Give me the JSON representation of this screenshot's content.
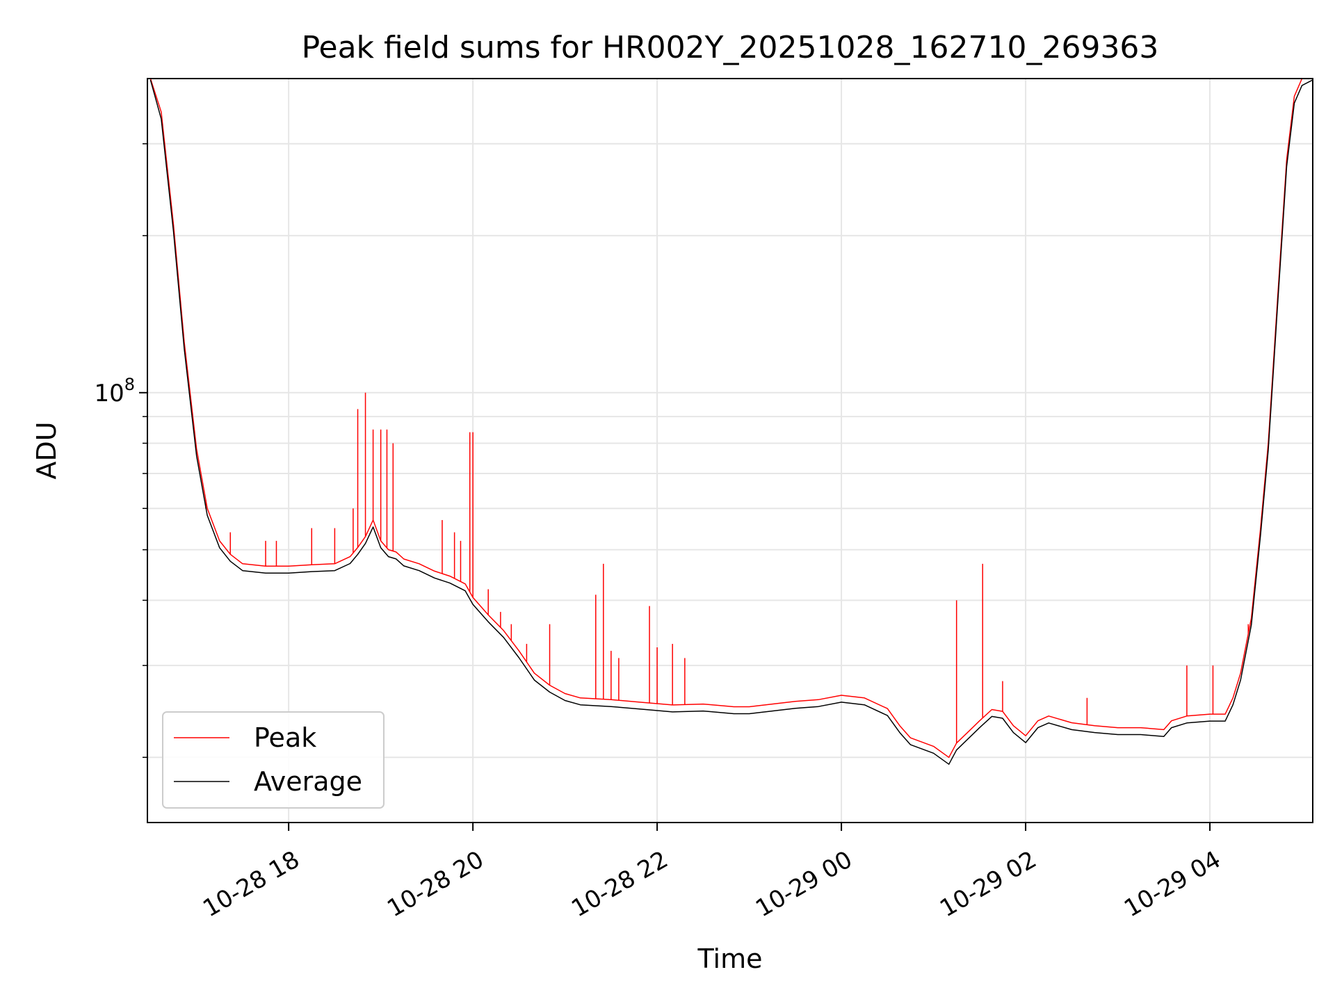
{
  "chart_data": {
    "type": "line",
    "title": "Peak field sums for HR002Y_20251028_162710_269363",
    "xlabel": "Time",
    "ylabel": "ADU",
    "x_axis": {
      "type": "time",
      "min": "2025-10-28T16:28:00",
      "max": "2025-10-29T05:07:00",
      "ticks": [
        {
          "value": "2025-10-28T18:00:00",
          "label": "10-28 18"
        },
        {
          "value": "2025-10-28T20:00:00",
          "label": "10-28 20"
        },
        {
          "value": "2025-10-28T22:00:00",
          "label": "10-28 22"
        },
        {
          "value": "2025-10-29T00:00:00",
          "label": "10-29 00"
        },
        {
          "value": "2025-10-29T02:00:00",
          "label": "10-29 02"
        },
        {
          "value": "2025-10-29T04:00:00",
          "label": "10-29 04"
        }
      ]
    },
    "y_axis": {
      "scale": "log",
      "ylim": [
        15000000,
        400000000
      ],
      "major_ticks": [
        {
          "value": 100000000,
          "base": "10",
          "exp": "8"
        }
      ],
      "minor_ticks": [
        20000000,
        30000000,
        40000000,
        50000000,
        60000000,
        70000000,
        80000000,
        90000000,
        200000000,
        300000000
      ]
    },
    "grid": true,
    "legend": {
      "position": "lower-left"
    },
    "series": [
      {
        "name": "Peak",
        "color": "#ff0000",
        "points": [
          [
            "2025-10-28T16:30:00",
            410000000
          ],
          [
            "2025-10-28T16:37:00",
            345000000
          ],
          [
            "2025-10-28T16:45:00",
            210000000
          ],
          [
            "2025-10-28T16:52:00",
            125000000
          ],
          [
            "2025-10-28T17:00:00",
            78000000
          ],
          [
            "2025-10-28T17:07:00",
            60000000
          ],
          [
            "2025-10-28T17:15:00",
            52000000
          ],
          [
            "2025-10-28T17:22:00",
            49000000
          ],
          [
            "2025-10-28T17:30:00",
            47000000
          ],
          [
            "2025-10-28T17:45:00",
            46500000
          ],
          [
            "2025-10-28T18:00:00",
            46500000
          ],
          [
            "2025-10-28T18:15:00",
            46800000
          ],
          [
            "2025-10-28T18:30:00",
            47000000
          ],
          [
            "2025-10-28T18:40:00",
            48500000
          ],
          [
            "2025-10-28T18:45:00",
            50500000
          ],
          [
            "2025-10-28T18:50:00",
            53000000
          ],
          [
            "2025-10-28T18:55:00",
            57000000
          ],
          [
            "2025-10-28T19:00:00",
            52000000
          ],
          [
            "2025-10-28T19:05:00",
            50000000
          ],
          [
            "2025-10-28T19:10:00",
            49500000
          ],
          [
            "2025-10-28T19:15:00",
            48000000
          ],
          [
            "2025-10-28T19:25:00",
            47000000
          ],
          [
            "2025-10-28T19:35:00",
            45500000
          ],
          [
            "2025-10-28T19:45:00",
            44500000
          ],
          [
            "2025-10-28T19:55:00",
            43000000
          ],
          [
            "2025-10-28T20:00:00",
            40500000
          ],
          [
            "2025-10-28T20:10:00",
            37500000
          ],
          [
            "2025-10-28T20:20:00",
            35000000
          ],
          [
            "2025-10-28T20:30:00",
            32000000
          ],
          [
            "2025-10-28T20:40:00",
            29000000
          ],
          [
            "2025-10-28T20:50:00",
            27500000
          ],
          [
            "2025-10-28T21:00:00",
            26500000
          ],
          [
            "2025-10-28T21:10:00",
            26000000
          ],
          [
            "2025-10-28T21:30:00",
            25800000
          ],
          [
            "2025-10-28T21:50:00",
            25500000
          ],
          [
            "2025-10-28T22:10:00",
            25200000
          ],
          [
            "2025-10-28T22:30:00",
            25300000
          ],
          [
            "2025-10-28T22:50:00",
            25000000
          ],
          [
            "2025-10-28T23:00:00",
            25000000
          ],
          [
            "2025-10-28T23:15:00",
            25300000
          ],
          [
            "2025-10-28T23:30:00",
            25600000
          ],
          [
            "2025-10-28T23:45:00",
            25800000
          ],
          [
            "2025-10-29T00:00:00",
            26300000
          ],
          [
            "2025-10-29T00:15:00",
            26000000
          ],
          [
            "2025-10-29T00:30:00",
            24800000
          ],
          [
            "2025-10-29T00:38:00",
            23000000
          ],
          [
            "2025-10-29T00:45:00",
            21800000
          ],
          [
            "2025-10-29T01:00:00",
            21000000
          ],
          [
            "2025-10-29T01:10:00",
            20000000
          ],
          [
            "2025-10-29T01:15:00",
            21300000
          ],
          [
            "2025-10-29T01:22:00",
            22300000
          ],
          [
            "2025-10-29T01:30:00",
            23500000
          ],
          [
            "2025-10-29T01:38:00",
            24700000
          ],
          [
            "2025-10-29T01:45:00",
            24500000
          ],
          [
            "2025-10-29T01:52:00",
            23000000
          ],
          [
            "2025-10-29T02:00:00",
            22000000
          ],
          [
            "2025-10-29T02:08:00",
            23500000
          ],
          [
            "2025-10-29T02:15:00",
            24000000
          ],
          [
            "2025-10-29T02:30:00",
            23300000
          ],
          [
            "2025-10-29T02:45:00",
            23000000
          ],
          [
            "2025-10-29T03:00:00",
            22800000
          ],
          [
            "2025-10-29T03:15:00",
            22800000
          ],
          [
            "2025-10-29T03:30:00",
            22600000
          ],
          [
            "2025-10-29T03:35:00",
            23500000
          ],
          [
            "2025-10-29T03:45:00",
            24000000
          ],
          [
            "2025-10-29T04:00:00",
            24200000
          ],
          [
            "2025-10-29T04:10:00",
            24200000
          ],
          [
            "2025-10-29T04:15:00",
            26000000
          ],
          [
            "2025-10-29T04:20:00",
            29000000
          ],
          [
            "2025-10-29T04:27:00",
            37000000
          ],
          [
            "2025-10-29T04:33:00",
            55000000
          ],
          [
            "2025-10-29T04:38:00",
            80000000
          ],
          [
            "2025-10-29T04:44:00",
            150000000
          ],
          [
            "2025-10-29T04:50:00",
            280000000
          ],
          [
            "2025-10-29T04:55:00",
            370000000
          ],
          [
            "2025-10-29T05:00:00",
            400000000
          ],
          [
            "2025-10-29T05:07:00",
            410000000
          ]
        ],
        "spikes": [
          [
            "2025-10-28T17:06:00",
            60000000
          ],
          [
            "2025-10-28T17:22:00",
            54000000
          ],
          [
            "2025-10-28T17:45:00",
            52000000
          ],
          [
            "2025-10-28T17:52:00",
            52000000
          ],
          [
            "2025-10-28T18:15:00",
            55000000
          ],
          [
            "2025-10-28T18:30:00",
            55000000
          ],
          [
            "2025-10-28T18:42:00",
            60000000
          ],
          [
            "2025-10-28T18:45:00",
            93000000
          ],
          [
            "2025-10-28T18:50:00",
            100000000
          ],
          [
            "2025-10-28T18:55:00",
            85000000
          ],
          [
            "2025-10-28T19:00:00",
            85000000
          ],
          [
            "2025-10-28T19:04:00",
            85000000
          ],
          [
            "2025-10-28T19:08:00",
            80000000
          ],
          [
            "2025-10-28T19:40:00",
            57000000
          ],
          [
            "2025-10-28T19:48:00",
            54000000
          ],
          [
            "2025-10-28T19:52:00",
            52000000
          ],
          [
            "2025-10-28T19:58:00",
            84000000
          ],
          [
            "2025-10-28T20:00:00",
            84000000
          ],
          [
            "2025-10-28T19:58:00",
            52000000
          ],
          [
            "2025-10-28T20:10:00",
            42000000
          ],
          [
            "2025-10-28T20:18:00",
            38000000
          ],
          [
            "2025-10-28T20:25:00",
            36000000
          ],
          [
            "2025-10-28T20:35:00",
            33000000
          ],
          [
            "2025-10-28T20:50:00",
            36000000
          ],
          [
            "2025-10-28T21:20:00",
            41000000
          ],
          [
            "2025-10-28T21:25:00",
            47000000
          ],
          [
            "2025-10-28T21:30:00",
            32000000
          ],
          [
            "2025-10-28T21:35:00",
            31000000
          ],
          [
            "2025-10-28T21:55:00",
            39000000
          ],
          [
            "2025-10-28T22:00:00",
            32500000
          ],
          [
            "2025-10-28T22:10:00",
            33000000
          ],
          [
            "2025-10-28T22:18:00",
            31000000
          ],
          [
            "2025-10-29T01:15:00",
            40000000
          ],
          [
            "2025-10-29T01:32:00",
            47000000
          ],
          [
            "2025-10-29T01:45:00",
            28000000
          ],
          [
            "2025-10-29T02:40:00",
            26000000
          ],
          [
            "2025-10-29T03:45:00",
            30000000
          ],
          [
            "2025-10-29T04:02:00",
            30000000
          ],
          [
            "2025-10-29T04:25:00",
            36000000
          ],
          [
            "2025-10-29T04:32:00",
            50000000
          ]
        ]
      },
      {
        "name": "Average",
        "color": "#000000",
        "ratio_to_peak": 0.97
      }
    ]
  }
}
